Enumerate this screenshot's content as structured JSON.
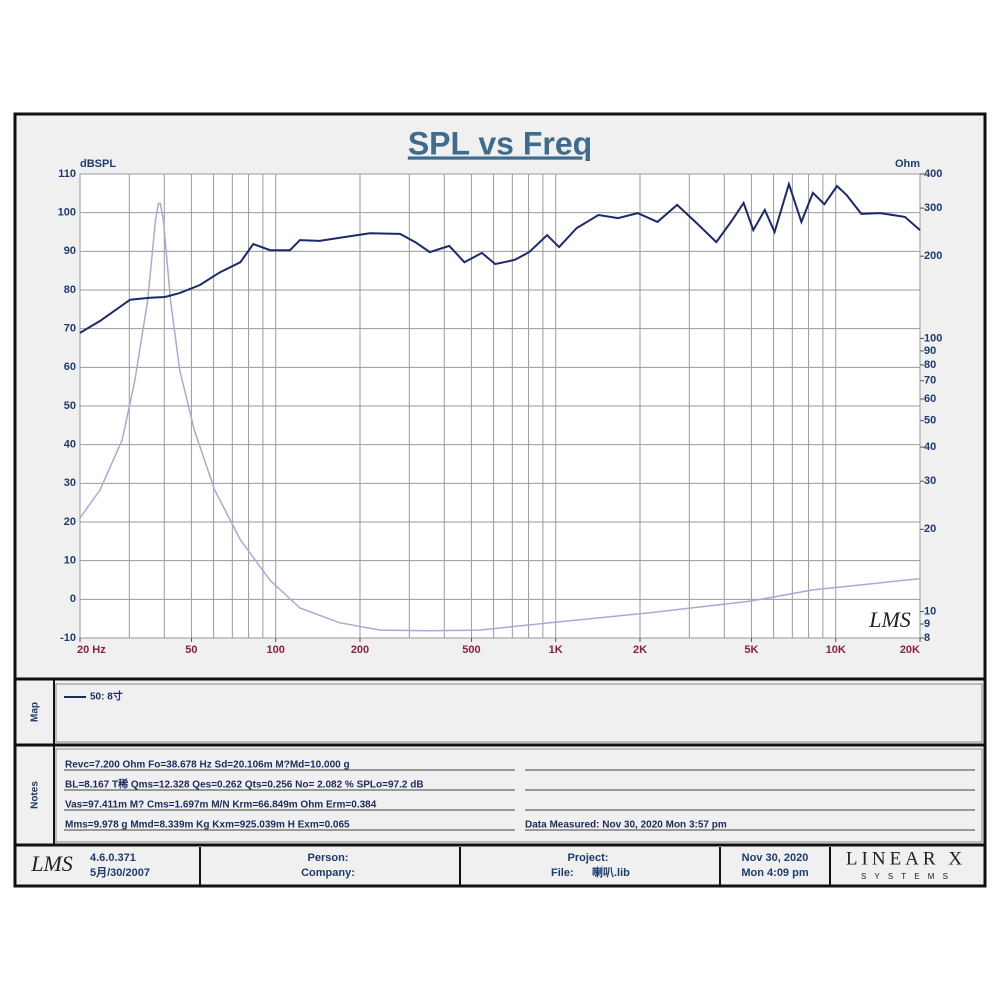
{
  "chart_data": {
    "type": "line",
    "title": "SPL vs Freq",
    "y_label": "dBSPL",
    "y2_label": "Ohm",
    "watermark": "LMS",
    "xscale": "log",
    "y2scale": "log",
    "grid": true,
    "xlim": [
      20,
      20000
    ],
    "xticks": [
      {
        "value": 20,
        "label": "20  Hz"
      },
      50,
      100,
      200,
      500,
      {
        "value": 1000,
        "label": "1K"
      },
      {
        "value": 2000,
        "label": "2K"
      },
      {
        "value": 5000,
        "label": "5K"
      },
      {
        "value": 10000,
        "label": "10K"
      },
      {
        "value": 20000,
        "label": "20K"
      }
    ],
    "xgrid": [
      20,
      30,
      40,
      50,
      60,
      70,
      80,
      90,
      100,
      200,
      300,
      400,
      500,
      600,
      700,
      800,
      900,
      1000,
      2000,
      3000,
      4000,
      5000,
      6000,
      7000,
      8000,
      9000,
      10000,
      20000
    ],
    "ylim": [
      -10,
      110
    ],
    "yticks": [
      -10,
      0,
      10,
      20,
      30,
      40,
      50,
      60,
      70,
      80,
      90,
      100,
      110
    ],
    "y2lim": [
      8,
      400
    ],
    "y2ticks": [
      8,
      9,
      10,
      20,
      30,
      40,
      50,
      60,
      70,
      80,
      90,
      100,
      200,
      300,
      400
    ],
    "series": [
      {
        "name": "50: 8寸",
        "color": "#1a2a6c",
        "x": [
          20,
          23.6,
          30.2,
          35.6,
          40.2,
          45.4,
          53.6,
          63.3,
          74.8,
          83.2,
          95.6,
          112.5,
          122,
          143.6,
          176.6,
          216.7,
          278,
          315,
          355,
          417,
          472,
          545,
          608,
          715,
          804,
          932,
          1028,
          1187,
          1420,
          1670,
          1963,
          2310,
          2713,
          3187,
          3745,
          4226,
          4687,
          5078,
          5580,
          6050,
          6803,
          7540,
          8290,
          9110,
          10110,
          10930,
          12340,
          14440,
          17660,
          20000
        ],
        "values": [
          68.9,
          72,
          77.5,
          78,
          78.2,
          79.2,
          81.3,
          84.6,
          87.2,
          91.9,
          90.3,
          90.3,
          92.9,
          92.7,
          93.7,
          94.7,
          94.5,
          92.4,
          89.8,
          91.4,
          87.2,
          89.6,
          86.7,
          87.8,
          89.8,
          94.2,
          91.1,
          96,
          99.4,
          98.6,
          99.9,
          97.6,
          102,
          97.3,
          92.4,
          97.6,
          102.5,
          95.5,
          100.7,
          95,
          107.4,
          97.6,
          105.1,
          102.2,
          106.9,
          104.6,
          99.7,
          99.9,
          98.9,
          95.5
        ]
      },
      {
        "color": "#a9a9d9",
        "axis": "y2",
        "x": [
          20,
          23.6,
          28.3,
          31.4,
          34.9,
          37.2,
          38.1,
          38.7,
          39.7,
          42.1,
          45.4,
          51.2,
          60.5,
          74.8,
          95.6,
          122,
          169,
          236,
          355,
          535,
          954,
          2170,
          4920,
          8290,
          14000,
          20000
        ],
        "values": [
          22,
          27.9,
          42.5,
          70.4,
          138,
          271,
          312,
          312,
          271,
          138,
          76.6,
          46.2,
          27.9,
          18.3,
          13,
          10.3,
          9.1,
          8.55,
          8.5,
          8.55,
          9.1,
          9.9,
          10.9,
          12,
          12.7,
          13.2
        ]
      }
    ]
  },
  "map": {
    "label": "Map"
  },
  "notes": {
    "label": "Notes",
    "lines": [
      "Revc=7.200 Ohm  Fo=38.678 Hz  Sd=20.106m M?Md=10.000 g",
      "BL=8.167 T稀  Qms=12.328  Qes=0.262  Qts=0.256  No= 2.082 %  SPLo=97.2 dB",
      "Vas=97.411m M? Cms=1.697m M/N  Krm=66.849m Ohm  Erm=0.384",
      "Mms=9.978 g  Mmd=8.339m Kg  Kxm=925.039m H  Exm=0.065"
    ],
    "measured": "Data Measured: Nov 30, 2020  Mon  3:57 pm"
  },
  "footer": {
    "logo": "LMS",
    "version": "4.6.0.371",
    "version_date": "5月/30/2007",
    "person": "Person:",
    "company": "Company:",
    "project": "Project:",
    "file_label": "File:",
    "file": "喇叭.lib",
    "date": "Nov 30, 2020",
    "time": "Mon  4:09 pm",
    "brand": "LINEAR X",
    "brand_sub": "S Y S T E M S"
  }
}
